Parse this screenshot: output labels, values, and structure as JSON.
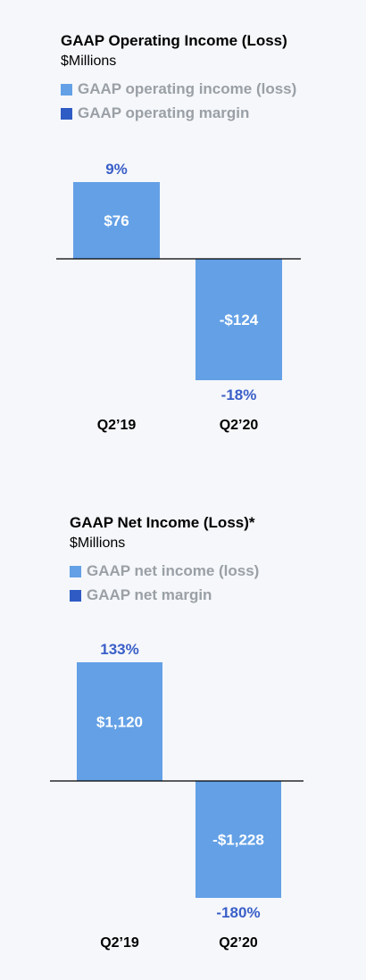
{
  "colors": {
    "bar": "#63a0e6",
    "margin": "#2f5bc4",
    "pct_text": "#3a5fc8",
    "legend_text": "#9aa0a6",
    "axis": "#000000"
  },
  "chart_data": [
    {
      "type": "bar",
      "title": "GAAP Operating Income (Loss)",
      "subtitle": "$Millions",
      "legend": [
        {
          "label": "GAAP operating income (loss)",
          "color": "#63a0e6"
        },
        {
          "label": "GAAP operating margin",
          "color": "#2f5bc4"
        }
      ],
      "categories": [
        "Q2’19",
        "Q2’20"
      ],
      "values": [
        76,
        -124
      ],
      "value_labels": [
        "$76",
        "-$124"
      ],
      "margins": [
        "9%",
        "-18%"
      ],
      "ylim": [
        -124,
        76
      ]
    },
    {
      "type": "bar",
      "title": "GAAP Net Income (Loss)*",
      "subtitle": "$Millions",
      "legend": [
        {
          "label": "GAAP net income (loss)",
          "color": "#63a0e6"
        },
        {
          "label": "GAAP net margin",
          "color": "#2f5bc4"
        }
      ],
      "categories": [
        "Q2’19",
        "Q2’20"
      ],
      "values": [
        1120,
        -1228
      ],
      "value_labels": [
        "$1,120",
        "-$1,228"
      ],
      "margins": [
        "133%",
        "-180%"
      ],
      "ylim": [
        -1228,
        1120
      ]
    }
  ]
}
